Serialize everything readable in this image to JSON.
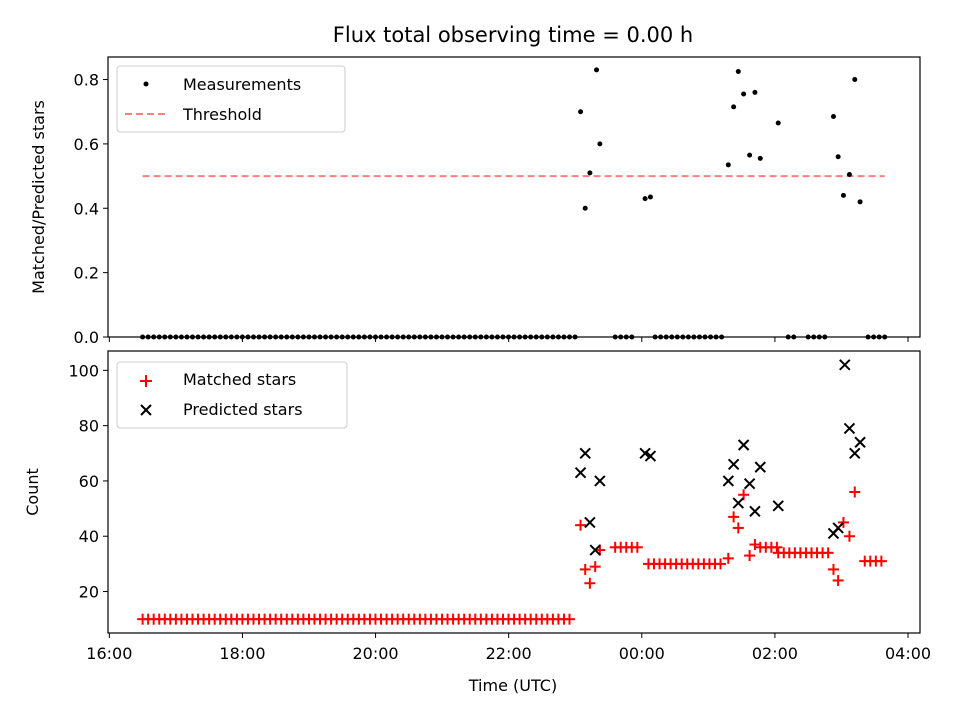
{
  "chart_data": [
    {
      "type": "scatter",
      "title": "Flux total observing time = 0.00 h",
      "xlabel": "",
      "ylabel": "Matched/Predicted stars",
      "xlim": [
        15.98,
        28.18
      ],
      "ylim": [
        0.0,
        0.87
      ],
      "yticks": [
        {
          "v": 0.0,
          "label": "0.0"
        },
        {
          "v": 0.2,
          "label": "0.2"
        },
        {
          "v": 0.4,
          "label": "0.4"
        },
        {
          "v": 0.6,
          "label": "0.6"
        },
        {
          "v": 0.8,
          "label": "0.8"
        }
      ],
      "xticks_hours": [
        16,
        18,
        20,
        22,
        24,
        26,
        28
      ],
      "legend": {
        "location": "upper-left",
        "items": [
          "Measurements",
          "Threshold"
        ]
      },
      "threshold": {
        "name": "Threshold",
        "value": 0.5,
        "x_range": [
          16.5,
          27.65
        ],
        "color": "#ff7f7f",
        "style": "dashed"
      },
      "measurements": {
        "name": "Measurements",
        "color": "#000000",
        "zero_runs": [
          [
            16.5,
            23.0
          ],
          [
            23.6,
            23.9
          ],
          [
            24.2,
            25.2
          ],
          [
            26.2,
            26.35
          ],
          [
            26.5,
            26.8
          ],
          [
            27.4,
            27.65
          ]
        ],
        "zero_step_hours": 0.0833,
        "points": [
          [
            23.08,
            0.7
          ],
          [
            23.15,
            0.4
          ],
          [
            23.22,
            0.51
          ],
          [
            23.32,
            0.83
          ],
          [
            23.37,
            0.6
          ],
          [
            24.05,
            0.43
          ],
          [
            24.13,
            0.435
          ],
          [
            25.3,
            0.535
          ],
          [
            25.38,
            0.715
          ],
          [
            25.45,
            0.825
          ],
          [
            25.53,
            0.755
          ],
          [
            25.62,
            0.565
          ],
          [
            25.7,
            0.76
          ],
          [
            25.78,
            0.555
          ],
          [
            26.05,
            0.665
          ],
          [
            26.88,
            0.685
          ],
          [
            26.95,
            0.56
          ],
          [
            27.03,
            0.44
          ],
          [
            27.12,
            0.505
          ],
          [
            27.2,
            0.8
          ],
          [
            27.28,
            0.42
          ]
        ]
      }
    },
    {
      "type": "scatter",
      "xlabel": "Time (UTC)",
      "ylabel": "Count",
      "xlim": [
        15.98,
        28.18
      ],
      "ylim": [
        5,
        107
      ],
      "yticks": [
        {
          "v": 20,
          "label": "20"
        },
        {
          "v": 40,
          "label": "40"
        },
        {
          "v": 60,
          "label": "60"
        },
        {
          "v": 80,
          "label": "80"
        },
        {
          "v": 100,
          "label": "100"
        }
      ],
      "xticks": [
        {
          "v": 16,
          "label": "16:00"
        },
        {
          "v": 18,
          "label": "18:00"
        },
        {
          "v": 20,
          "label": "20:00"
        },
        {
          "v": 22,
          "label": "22:00"
        },
        {
          "v": 24,
          "label": "00:00"
        },
        {
          "v": 26,
          "label": "02:00"
        },
        {
          "v": 28,
          "label": "04:00"
        }
      ],
      "legend": {
        "location": "upper-left",
        "items": [
          "Matched stars",
          "Predicted stars"
        ]
      },
      "matched": {
        "name": "Matched stars",
        "color": "#ff0000",
        "runs": [
          {
            "from": 16.5,
            "to": 22.95,
            "value": 10
          },
          {
            "from": 23.6,
            "to": 23.98,
            "value": 36
          },
          {
            "from": 24.1,
            "to": 25.2,
            "value": 30
          },
          {
            "from": 25.78,
            "to": 26.05,
            "value": 36
          },
          {
            "from": 26.05,
            "to": 26.8,
            "value": 34
          },
          {
            "from": 27.35,
            "to": 27.65,
            "value": 31
          }
        ],
        "step_hours": 0.0833,
        "points": [
          [
            23.08,
            44
          ],
          [
            23.15,
            28
          ],
          [
            23.22,
            23
          ],
          [
            23.3,
            29
          ],
          [
            23.37,
            35
          ],
          [
            25.3,
            32
          ],
          [
            25.38,
            47
          ],
          [
            25.45,
            43
          ],
          [
            25.53,
            55
          ],
          [
            25.62,
            33
          ],
          [
            25.7,
            37
          ],
          [
            26.88,
            28
          ],
          [
            26.95,
            24
          ],
          [
            27.03,
            45
          ],
          [
            27.12,
            40
          ],
          [
            27.2,
            56
          ]
        ]
      },
      "predicted": {
        "name": "Predicted stars",
        "color": "#000000",
        "points": [
          [
            23.08,
            63
          ],
          [
            23.15,
            70
          ],
          [
            23.22,
            45
          ],
          [
            23.3,
            35
          ],
          [
            23.37,
            60
          ],
          [
            24.05,
            70
          ],
          [
            24.13,
            69
          ],
          [
            25.3,
            60
          ],
          [
            25.38,
            66
          ],
          [
            25.45,
            52
          ],
          [
            25.53,
            73
          ],
          [
            25.62,
            59
          ],
          [
            25.7,
            49
          ],
          [
            25.78,
            65
          ],
          [
            26.05,
            51
          ],
          [
            26.88,
            41
          ],
          [
            26.95,
            43
          ],
          [
            27.05,
            102
          ],
          [
            27.12,
            79
          ],
          [
            27.2,
            70
          ],
          [
            27.28,
            74
          ]
        ]
      }
    }
  ]
}
